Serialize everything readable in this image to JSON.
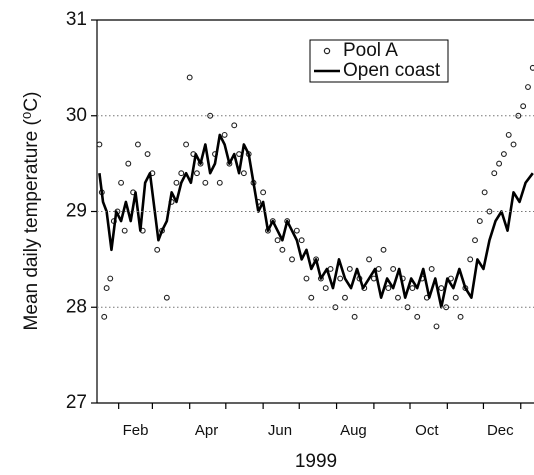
{
  "chart_data": {
    "type": "line",
    "ylabel": "Mean daily temperature (⁰C)",
    "xlabel": "1999",
    "xlim": [
      14,
      377
    ],
    "ylim": [
      27,
      31
    ],
    "yticks": [
      27,
      28,
      29,
      30,
      31
    ],
    "xticks": [
      {
        "value": 46,
        "label": "Feb"
      },
      {
        "value": 105,
        "label": "Apr"
      },
      {
        "value": 166,
        "label": "Jun"
      },
      {
        "value": 227,
        "label": "Aug"
      },
      {
        "value": 288,
        "label": "Oct"
      },
      {
        "value": 349,
        "label": "Dec"
      }
    ],
    "xminorticks": [
      32,
      60,
      91,
      121,
      152,
      182,
      213,
      244,
      274,
      305,
      335,
      366
    ],
    "grid": true,
    "legend": "upper right",
    "series": [
      {
        "name": "Pool A",
        "style": "markers",
        "color": "#222222",
        "x": [
          16,
          18,
          20,
          22,
          25,
          28,
          31,
          34,
          37,
          40,
          44,
          48,
          52,
          56,
          60,
          64,
          68,
          72,
          76,
          80,
          84,
          88,
          91,
          94,
          97,
          100,
          104,
          108,
          112,
          116,
          120,
          124,
          128,
          132,
          136,
          140,
          144,
          148,
          152,
          156,
          160,
          164,
          168,
          172,
          176,
          180,
          184,
          188,
          192,
          196,
          200,
          204,
          208,
          212,
          216,
          220,
          224,
          228,
          232,
          236,
          240,
          244,
          248,
          252,
          256,
          260,
          264,
          268,
          272,
          276,
          280,
          284,
          288,
          292,
          296,
          300,
          304,
          308,
          312,
          316,
          320,
          324,
          328,
          332,
          336,
          340,
          344,
          348,
          352,
          356,
          360,
          364,
          368,
          372,
          376
        ],
        "values": [
          29.7,
          29.2,
          27.9,
          28.2,
          28.3,
          28.9,
          29.0,
          29.3,
          28.8,
          29.5,
          29.2,
          29.7,
          28.8,
          29.6,
          29.4,
          28.6,
          28.8,
          28.1,
          29.1,
          29.3,
          29.4,
          29.7,
          30.4,
          29.6,
          29.4,
          29.5,
          29.3,
          30.0,
          29.6,
          29.3,
          29.8,
          29.5,
          29.9,
          29.6,
          29.4,
          29.6,
          29.3,
          29.1,
          29.2,
          28.8,
          28.9,
          28.7,
          28.6,
          28.9,
          28.5,
          28.8,
          28.7,
          28.3,
          28.1,
          28.5,
          28.3,
          28.2,
          28.4,
          28.0,
          28.3,
          28.1,
          28.4,
          27.9,
          28.3,
          28.2,
          28.5,
          28.3,
          28.4,
          28.6,
          28.2,
          28.4,
          28.1,
          28.3,
          28.0,
          28.2,
          27.9,
          28.3,
          28.1,
          28.4,
          27.8,
          28.2,
          28.0,
          28.3,
          28.1,
          27.9,
          28.2,
          28.5,
          28.7,
          28.9,
          29.2,
          29.0,
          29.4,
          29.5,
          29.6,
          29.8,
          29.7,
          30.0,
          30.1,
          30.3,
          30.5
        ]
      },
      {
        "name": "Open coast",
        "style": "line",
        "color": "#000000",
        "x": [
          16,
          19,
          22,
          26,
          30,
          34,
          38,
          42,
          46,
          50,
          54,
          58,
          62,
          65,
          68,
          72,
          76,
          80,
          84,
          88,
          92,
          96,
          100,
          104,
          108,
          112,
          116,
          120,
          124,
          128,
          132,
          136,
          140,
          144,
          148,
          152,
          156,
          160,
          164,
          168,
          172,
          176,
          180,
          184,
          188,
          192,
          196,
          200,
          205,
          210,
          215,
          220,
          225,
          230,
          235,
          240,
          245,
          250,
          255,
          260,
          265,
          270,
          275,
          280,
          285,
          290,
          295,
          300,
          305,
          310,
          315,
          320,
          325,
          330,
          335,
          340,
          345,
          350,
          355,
          360,
          365,
          370,
          376
        ],
        "values": [
          29.4,
          29.1,
          29.0,
          28.6,
          29.0,
          28.9,
          29.1,
          28.9,
          29.2,
          28.8,
          29.3,
          29.4,
          29.0,
          28.7,
          28.8,
          28.9,
          29.2,
          29.1,
          29.3,
          29.4,
          29.3,
          29.6,
          29.5,
          29.7,
          29.4,
          29.5,
          29.8,
          29.7,
          29.5,
          29.6,
          29.4,
          29.7,
          29.6,
          29.3,
          29.0,
          29.1,
          28.8,
          28.9,
          28.8,
          28.7,
          28.9,
          28.8,
          28.7,
          28.5,
          28.6,
          28.4,
          28.5,
          28.3,
          28.4,
          28.2,
          28.5,
          28.3,
          28.2,
          28.4,
          28.2,
          28.3,
          28.4,
          28.1,
          28.3,
          28.2,
          28.4,
          28.1,
          28.3,
          28.2,
          28.4,
          28.1,
          28.3,
          28.0,
          28.3,
          28.2,
          28.4,
          28.2,
          28.1,
          28.5,
          28.4,
          28.7,
          28.9,
          29.0,
          28.8,
          29.2,
          29.1,
          29.3,
          29.4
        ]
      }
    ]
  }
}
